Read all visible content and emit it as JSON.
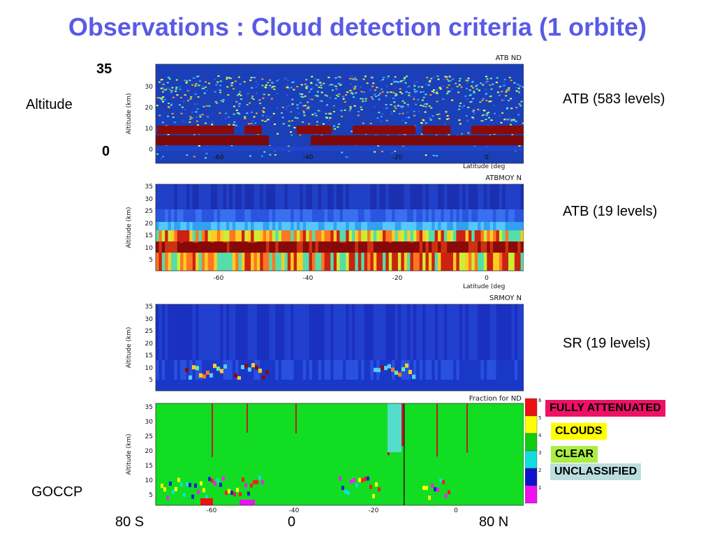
{
  "title": "Observations : Cloud detection criteria (1 orbite)",
  "left_labels": {
    "alt_top": "35",
    "alt_name": "Altitude",
    "alt_bottom": "0",
    "goccp": "GOCCP"
  },
  "panels": [
    {
      "id": "atb583",
      "title": "ATB ND",
      "side_label": "ATB (583 levels)",
      "ylabel": "Altitude (km)",
      "yticks": [
        "30",
        "20",
        "10",
        "0"
      ],
      "xticks": [
        "-60",
        "-40",
        "-20",
        "0"
      ],
      "xlabel": "Latitude (deg"
    },
    {
      "id": "atb19",
      "title": "ATBMOY N",
      "side_label": "ATB (19 levels)",
      "ylabel": "Altitude (km)",
      "yticks": [
        "35",
        "30",
        "25",
        "20",
        "15",
        "10",
        "5"
      ],
      "xticks": [
        "-60",
        "-40",
        "-20",
        "0"
      ],
      "xlabel": "Latitude (deg"
    },
    {
      "id": "sr19",
      "title": "SRMOY N",
      "side_label": "SR (19 levels)",
      "ylabel": "Altitude (km)",
      "yticks": [
        "35",
        "30",
        "25",
        "20",
        "15",
        "10",
        "5"
      ],
      "xticks": [],
      "xlabel": ""
    },
    {
      "id": "goccp",
      "title": "Fraction for ND",
      "ylabel": "Altitude (km)",
      "yticks": [
        "35",
        "30",
        "25",
        "20",
        "15",
        "10",
        "5"
      ],
      "xticks": [
        "-60",
        "-40",
        "-20",
        "0"
      ],
      "xlabel": ""
    }
  ],
  "colorbar": {
    "ticks": [
      "6",
      "5",
      "4",
      "3",
      "2",
      "1"
    ],
    "colors": [
      "#ee1111",
      "#ffff00",
      "#11cc11",
      "#11dddd",
      "#1111cc",
      "#ee11ee"
    ]
  },
  "categories": [
    {
      "label": "FULLY ATTENUATED",
      "bg": "#ee1166",
      "fg": "#000000"
    },
    {
      "label": "CLOUDS",
      "bg": "#ffff00",
      "fg": "#000000"
    },
    {
      "label": "CLEAR",
      "bg": "#aaee44",
      "fg": "#000000"
    },
    {
      "label": "UNCLASSIFIED",
      "bg": "#bbdddd",
      "fg": "#000000"
    }
  ],
  "bottom_labels": {
    "left": "80 S",
    "mid": "0",
    "right": "80 N"
  }
}
